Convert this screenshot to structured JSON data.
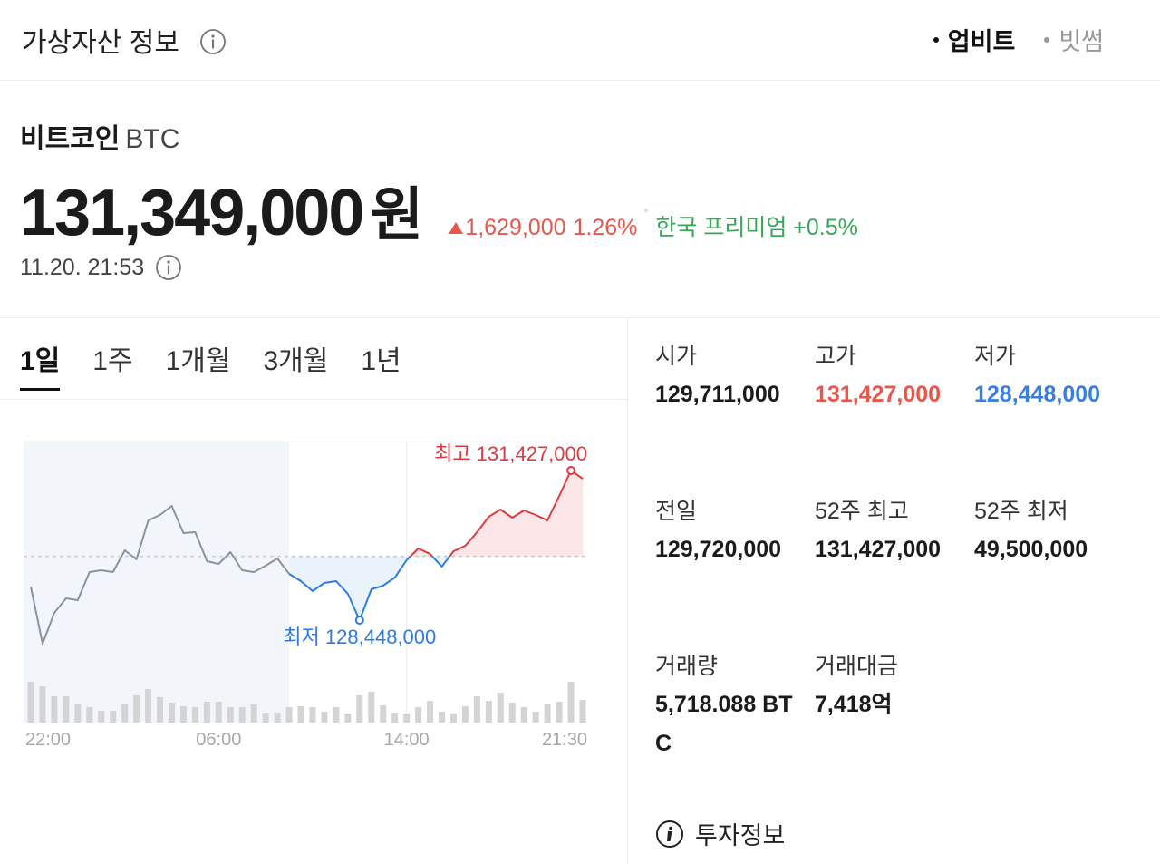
{
  "header": {
    "title": "가상자산 정보",
    "tabs": [
      {
        "label": "업비트",
        "active": true
      },
      {
        "label": "빗썸",
        "active": false
      }
    ]
  },
  "asset": {
    "name": "비트코인",
    "symbol": "BTC",
    "price": "131,349,000",
    "unit": "원",
    "change": "1,629,000",
    "change_rate": "1.26%",
    "premium": "한국 프리미엄 +0.5%",
    "time": "11.20. 21:53"
  },
  "periods": {
    "tabs": [
      "1일",
      "1주",
      "1개월",
      "3개월",
      "1년"
    ],
    "active": 0
  },
  "stats": [
    {
      "label": "시가",
      "value": "129,711,000"
    },
    {
      "label": "고가",
      "value": "131,427,000",
      "color": "#e8574b"
    },
    {
      "label": "저가",
      "value": "128,448,000",
      "color": "#3a7fe0"
    },
    {
      "label": "전일",
      "value": "129,720,000"
    },
    {
      "label": "52주 최고",
      "value": "131,427,000"
    },
    {
      "label": "52주 최저",
      "value": "49,500,000"
    },
    {
      "label": "거래량",
      "value": "5,718.088 BTC"
    },
    {
      "label": "거래대금",
      "value": "7,418억"
    }
  ],
  "footer": {
    "link": "투자정보"
  },
  "chart_data": {
    "type": "line",
    "categories": [
      "22:00",
      null,
      null,
      null,
      null,
      null,
      null,
      null,
      null,
      null,
      null,
      null,
      null,
      null,
      null,
      null,
      "06:00",
      null,
      null,
      null,
      null,
      null,
      null,
      null,
      null,
      null,
      null,
      null,
      null,
      null,
      null,
      null,
      "14:00",
      null,
      null,
      null,
      null,
      null,
      null,
      null,
      null,
      null,
      null,
      null,
      null,
      null,
      null,
      "21:30"
    ],
    "series": [
      {
        "color": "#8a93a3",
        "values": [
          129117000,
          127979000,
          128593000,
          128882000,
          128846000,
          129405000,
          129441000,
          129405000,
          129839000,
          129658000,
          130434000,
          130543000,
          130723000,
          130182000,
          130200000,
          129622000,
          129568000,
          129802000,
          129441000,
          129405000,
          129532000,
          129676000,
          129369000,
          null,
          null,
          null,
          null,
          null,
          null,
          null,
          null,
          null,
          null,
          null,
          null,
          null,
          null,
          null,
          null,
          null,
          null,
          null,
          null,
          null,
          null,
          null,
          null,
          null
        ]
      },
      {
        "color_up": "#e0393e",
        "color_down": "#2f7ce0",
        "values": [
          null,
          null,
          null,
          null,
          null,
          null,
          null,
          null,
          null,
          null,
          null,
          null,
          null,
          null,
          null,
          null,
          null,
          null,
          null,
          null,
          null,
          null,
          129369000,
          129225000,
          129026000,
          129189000,
          129225000,
          128972000,
          128448000,
          129062000,
          129135000,
          129297000,
          129640000,
          129875000,
          129766000,
          129514000,
          129821000,
          129929000,
          130200000,
          130506000,
          130651000,
          130488000,
          130633000,
          130543000,
          130434000,
          130922000,
          131427000,
          131265000
        ]
      }
    ],
    "reference": 129720000,
    "ylim": [
      127348000,
      132005000
    ],
    "annotations": [
      "최고 131,427,000",
      "최저 128,448,000"
    ],
    "volume": {
      "color": "#d4d4d4",
      "ylim": [
        0,
        278
      ],
      "values": [
        250,
        222,
        161,
        161,
        117,
        95,
        72,
        72,
        117,
        167,
        206,
        156,
        122,
        100,
        95,
        128,
        128,
        95,
        95,
        111,
        61,
        61,
        95,
        100,
        95,
        67,
        95,
        56,
        167,
        189,
        106,
        61,
        56,
        95,
        133,
        67,
        56,
        100,
        161,
        133,
        183,
        122,
        95,
        67,
        117,
        128,
        250,
        139
      ]
    }
  }
}
